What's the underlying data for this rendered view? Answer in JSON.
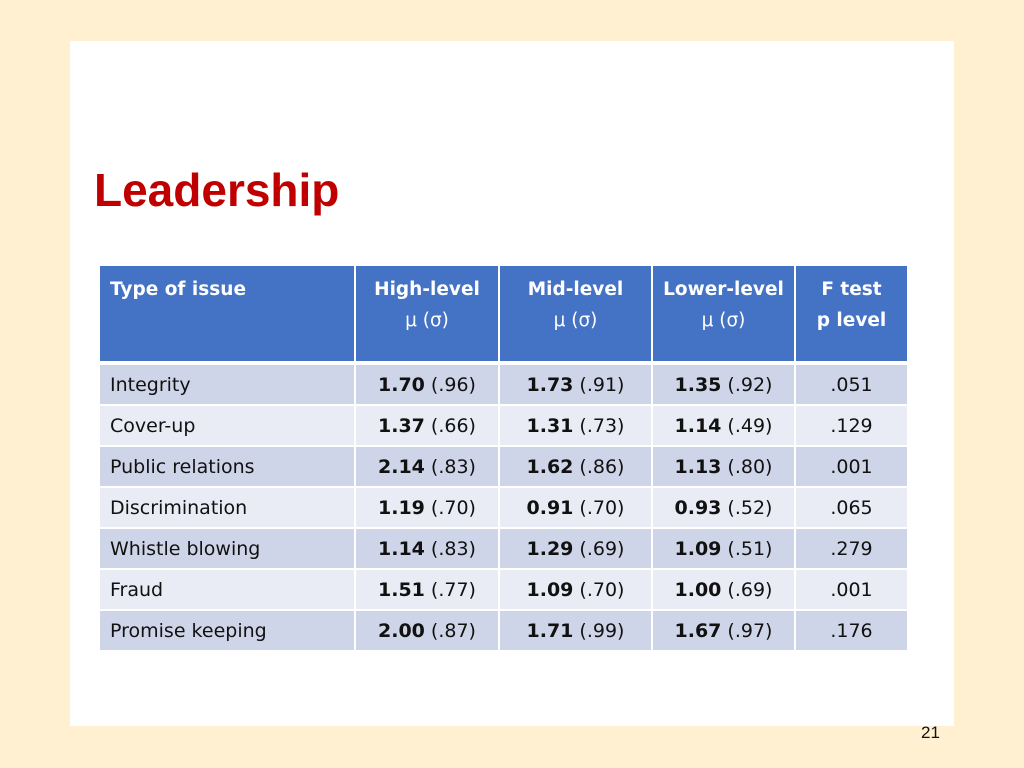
{
  "slide": {
    "title": "Leadership",
    "page_number": "21"
  },
  "colors": {
    "background": "#fff0d2",
    "slide": "#ffffff",
    "title": "#c00000",
    "header_fill": "#4472c4",
    "row_odd": "#cfd5e8",
    "row_even": "#e9ebf5"
  },
  "table": {
    "headers": [
      {
        "line1": "Type of issue",
        "line2": ""
      },
      {
        "line1": "High-level",
        "line2": "μ (σ)"
      },
      {
        "line1": "Mid-level",
        "line2": "μ (σ)"
      },
      {
        "line1": "Lower-level",
        "line2": "μ (σ)"
      },
      {
        "line1_italic": "F",
        "line1_rest": " test",
        "line2_italic": "p",
        "line2_rest": " level"
      }
    ],
    "rows": [
      {
        "type": "Integrity",
        "high": {
          "mean": "1.70",
          "sd": " (.96)"
        },
        "mid": {
          "mean": "1.73",
          "sd": " (.91)"
        },
        "low": {
          "mean": "1.35",
          "sd": " (.92)"
        },
        "p": ".051"
      },
      {
        "type": "Cover-up",
        "high": {
          "mean": "1.37",
          "sd": " (.66)"
        },
        "mid": {
          "mean": "1.31",
          "sd": " (.73)"
        },
        "low": {
          "mean": "1.14",
          "sd": " (.49)"
        },
        "p": ".129"
      },
      {
        "type": "Public relations",
        "high": {
          "mean": "2.14",
          "sd": " (.83)"
        },
        "mid": {
          "mean": "1.62",
          "sd": " (.86)"
        },
        "low": {
          "mean": "1.13",
          "sd": " (.80)"
        },
        "p": ".001"
      },
      {
        "type": "Discrimination",
        "high": {
          "mean": "1.19",
          "sd": " (.70)"
        },
        "mid": {
          "mean": "0.91",
          "sd": " (.70)"
        },
        "low": {
          "mean": "0.93",
          "sd": " (.52)"
        },
        "p": ".065"
      },
      {
        "type": "Whistle blowing",
        "high": {
          "mean": "1.14",
          "sd": " (.83)"
        },
        "mid": {
          "mean": "1.29",
          "sd": " (.69)"
        },
        "low": {
          "mean": "1.09",
          "sd": " (.51)"
        },
        "p": ".279"
      },
      {
        "type": "Fraud",
        "high": {
          "mean": "1.51",
          "sd": " (.77)"
        },
        "mid": {
          "mean": "1.09",
          "sd": " (.70)"
        },
        "low": {
          "mean": "1.00",
          "sd": " (.69)"
        },
        "p": ".001"
      },
      {
        "type": "Promise keeping",
        "high": {
          "mean": "2.00",
          "sd": " (.87)"
        },
        "mid": {
          "mean": "1.71",
          "sd": " (.99)"
        },
        "low": {
          "mean": "1.67",
          "sd": " (.97)"
        },
        "p": ".176"
      }
    ]
  }
}
